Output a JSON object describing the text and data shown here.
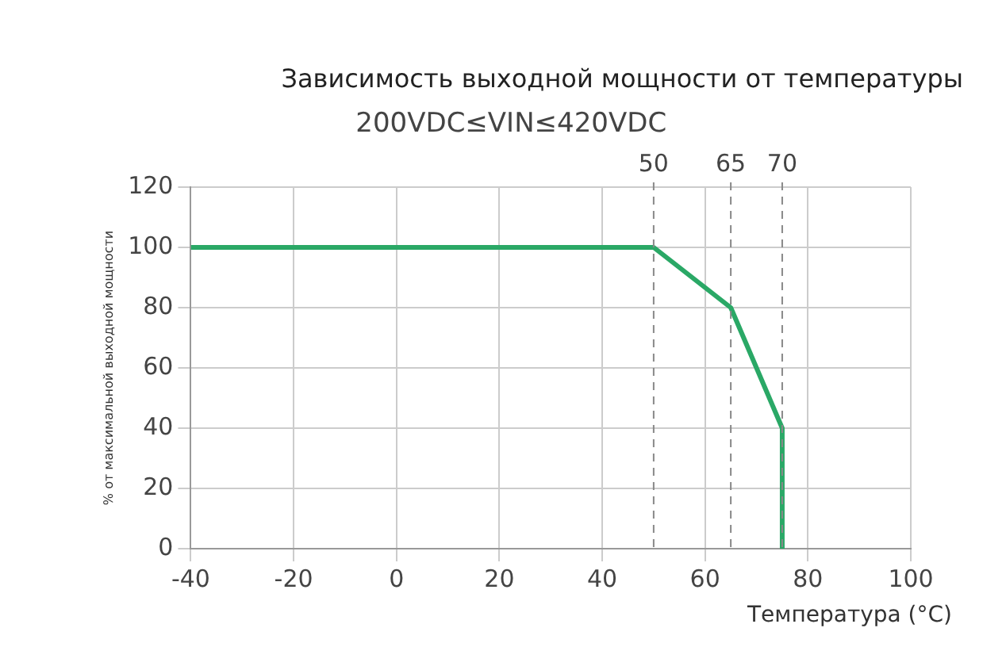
{
  "chart_data": {
    "type": "line",
    "title": "Зависимость выходной мощности от температуры",
    "subtitle": "200VDC≤VIN≤420VDC",
    "xlabel": "Температура (°C)",
    "ylabel": "% от максимальной выходной мощности",
    "series": [
      {
        "color": "#2aa866",
        "x": [
          -40,
          50,
          65,
          75,
          75
        ],
        "values": [
          100,
          100,
          80,
          40,
          0
        ]
      }
    ],
    "xlim": [
      -40,
      100
    ],
    "xticks": [
      -40,
      -20,
      0,
      20,
      40,
      60,
      80,
      100
    ],
    "ylim": [
      0,
      120
    ],
    "yticks": [
      0,
      20,
      40,
      60,
      80,
      100,
      120
    ],
    "ref_lines": [
      {
        "axis": "x",
        "value": 50,
        "color": "#888888",
        "line_style": "dashed"
      },
      {
        "axis": "x",
        "value": 65,
        "color": "#888888",
        "line_style": "dashed"
      },
      {
        "axis": "x",
        "value": 75,
        "color": "#888888",
        "line_style": "dashed"
      }
    ],
    "annotations": [
      "50",
      "65",
      "70"
    ],
    "grid": true,
    "legend": false,
    "marker": "none",
    "line_style": "solid"
  }
}
